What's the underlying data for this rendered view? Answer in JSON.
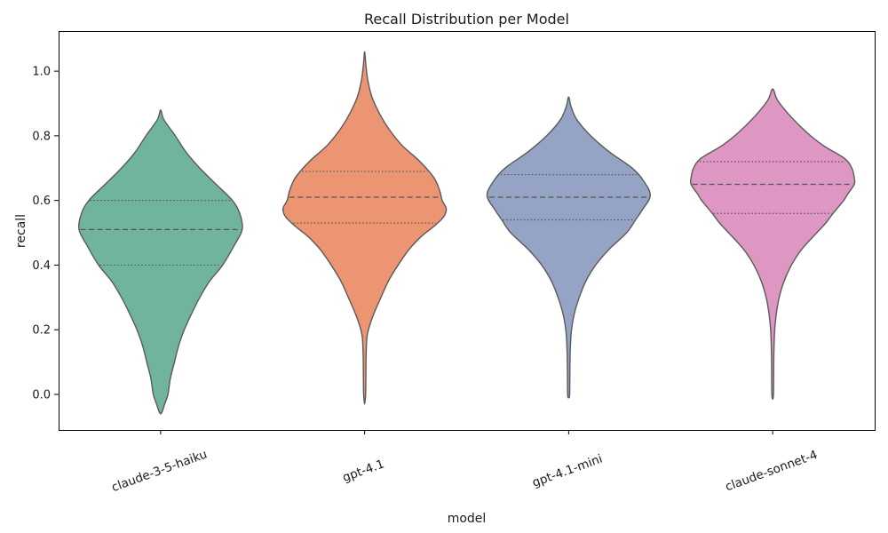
{
  "figure": {
    "background": "#ffffff"
  },
  "chart_data": {
    "type": "violin",
    "title": "Recall Distribution per Model",
    "xlabel": "model",
    "ylabel": "recall",
    "ylim": [
      -0.11,
      1.124
    ],
    "grid": false,
    "legend": false,
    "yticks": [
      {
        "value": 0.0,
        "label": "0.0"
      },
      {
        "value": 0.2,
        "label": "0.2"
      },
      {
        "value": 0.4,
        "label": "0.4"
      },
      {
        "value": 0.6,
        "label": "0.6"
      },
      {
        "value": 0.8,
        "label": "0.8"
      },
      {
        "value": 1.0,
        "label": "1.0"
      }
    ],
    "categories": [
      "claude-3-5-haiku",
      "gpt-4.1",
      "gpt-4.1-mini",
      "claude-sonnet-4"
    ],
    "violins": [
      {
        "model": "claude-3-5-haiku",
        "color": "#70b49c",
        "min": -0.06,
        "q1": 0.4,
        "median": 0.51,
        "q3": 0.6,
        "max": 0.88,
        "profile": [
          [
            0.88,
            0
          ],
          [
            0.85,
            0.04
          ],
          [
            0.8,
            0.18
          ],
          [
            0.75,
            0.31
          ],
          [
            0.7,
            0.48
          ],
          [
            0.65,
            0.68
          ],
          [
            0.6,
            0.88
          ],
          [
            0.56,
            0.97
          ],
          [
            0.51,
            1.0
          ],
          [
            0.46,
            0.9
          ],
          [
            0.4,
            0.76
          ],
          [
            0.35,
            0.6
          ],
          [
            0.3,
            0.48
          ],
          [
            0.25,
            0.38
          ],
          [
            0.2,
            0.29
          ],
          [
            0.15,
            0.22
          ],
          [
            0.1,
            0.17
          ],
          [
            0.05,
            0.12
          ],
          [
            0.0,
            0.09
          ],
          [
            -0.03,
            0.05
          ],
          [
            -0.06,
            0
          ]
        ]
      },
      {
        "model": "gpt-4.1",
        "color": "#ec9573",
        "min": -0.03,
        "q1": 0.53,
        "median": 0.61,
        "q3": 0.69,
        "max": 1.06,
        "profile": [
          [
            1.06,
            0
          ],
          [
            1.02,
            0.015
          ],
          [
            0.97,
            0.04
          ],
          [
            0.92,
            0.09
          ],
          [
            0.87,
            0.18
          ],
          [
            0.82,
            0.3
          ],
          [
            0.77,
            0.46
          ],
          [
            0.72,
            0.68
          ],
          [
            0.67,
            0.85
          ],
          [
            0.63,
            0.92
          ],
          [
            0.6,
            0.95
          ],
          [
            0.575,
            1.0
          ],
          [
            0.55,
            0.97
          ],
          [
            0.52,
            0.85
          ],
          [
            0.49,
            0.7
          ],
          [
            0.45,
            0.55
          ],
          [
            0.4,
            0.41
          ],
          [
            0.35,
            0.29
          ],
          [
            0.3,
            0.2
          ],
          [
            0.26,
            0.13
          ],
          [
            0.22,
            0.07
          ],
          [
            0.18,
            0.03
          ],
          [
            0.12,
            0.018
          ],
          [
            0.05,
            0.015
          ],
          [
            0.0,
            0.012
          ],
          [
            -0.03,
            0
          ]
        ]
      },
      {
        "model": "gpt-4.1-mini",
        "color": "#95a3c4",
        "min": -0.01,
        "q1": 0.54,
        "median": 0.61,
        "q3": 0.68,
        "max": 0.92,
        "profile": [
          [
            0.92,
            0
          ],
          [
            0.89,
            0.03
          ],
          [
            0.85,
            0.1
          ],
          [
            0.8,
            0.27
          ],
          [
            0.75,
            0.5
          ],
          [
            0.7,
            0.78
          ],
          [
            0.66,
            0.92
          ],
          [
            0.615,
            1.0
          ],
          [
            0.57,
            0.9
          ],
          [
            0.54,
            0.82
          ],
          [
            0.5,
            0.71
          ],
          [
            0.45,
            0.5
          ],
          [
            0.4,
            0.33
          ],
          [
            0.35,
            0.21
          ],
          [
            0.3,
            0.13
          ],
          [
            0.25,
            0.07
          ],
          [
            0.2,
            0.035
          ],
          [
            0.14,
            0.02
          ],
          [
            0.07,
            0.015
          ],
          [
            0.0,
            0.012
          ],
          [
            -0.01,
            0
          ]
        ]
      },
      {
        "model": "claude-sonnet-4",
        "color": "#dd97c2",
        "min": -0.015,
        "q1": 0.56,
        "median": 0.65,
        "q3": 0.72,
        "max": 0.945,
        "profile": [
          [
            0.945,
            0
          ],
          [
            0.91,
            0.06
          ],
          [
            0.86,
            0.22
          ],
          [
            0.81,
            0.42
          ],
          [
            0.77,
            0.62
          ],
          [
            0.73,
            0.88
          ],
          [
            0.7,
            0.97
          ],
          [
            0.67,
            1.0
          ],
          [
            0.65,
            1.0
          ],
          [
            0.62,
            0.92
          ],
          [
            0.6,
            0.87
          ],
          [
            0.56,
            0.74
          ],
          [
            0.53,
            0.65
          ],
          [
            0.5,
            0.54
          ],
          [
            0.45,
            0.36
          ],
          [
            0.4,
            0.23
          ],
          [
            0.35,
            0.14
          ],
          [
            0.3,
            0.08
          ],
          [
            0.25,
            0.045
          ],
          [
            0.2,
            0.025
          ],
          [
            0.13,
            0.015
          ],
          [
            0.06,
            0.012
          ],
          [
            0.0,
            0.01
          ],
          [
            -0.015,
            0
          ]
        ]
      }
    ],
    "style": {
      "edge_color": "#5a5a5a",
      "inner_line_color": "#555555",
      "axis_color": "#000000",
      "text_color": "#1a1a1a"
    }
  }
}
